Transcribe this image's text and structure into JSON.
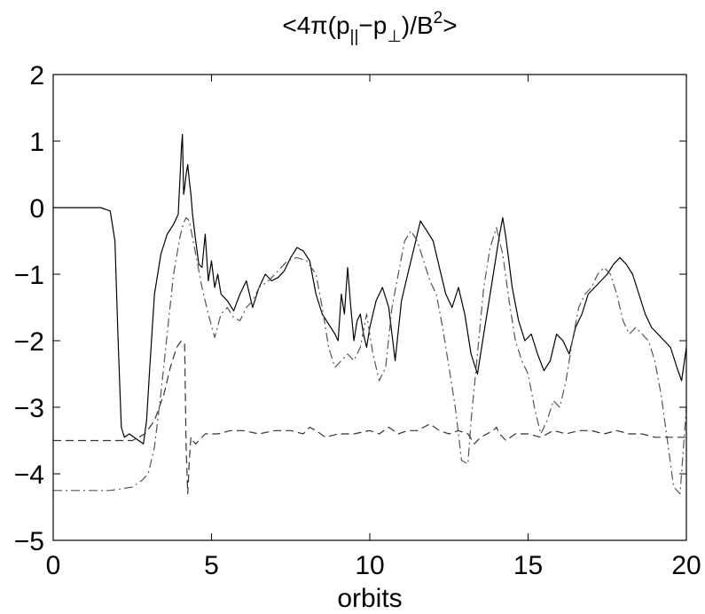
{
  "chart_data": {
    "type": "line",
    "title": "<4π(p||−p⊥)/B²>",
    "title_parts": {
      "prefix": "<4π(p",
      "sub1": "||",
      "mid": "−p",
      "sub2": "⊥",
      "after": ")/B",
      "sup": "2",
      "suffix": ">"
    },
    "xlabel": "orbits",
    "ylabel": "",
    "xlim": [
      0,
      20
    ],
    "ylim": [
      -5,
      2
    ],
    "xticks": [
      "0",
      "5",
      "10",
      "15",
      "20"
    ],
    "yticks": [
      "2",
      "1",
      "0",
      "−1",
      "−2",
      "−3",
      "−4",
      "−5"
    ],
    "grid": false,
    "legend": "none",
    "series": [
      {
        "style": "solid",
        "color": "#000000",
        "x": [
          0,
          1.5,
          1.8,
          1.95,
          2.05,
          2.15,
          2.25,
          2.4,
          2.55,
          2.7,
          2.85,
          2.95,
          3.05,
          3.2,
          3.4,
          3.6,
          3.8,
          3.95,
          4.05,
          4.08,
          4.12,
          4.15,
          4.2,
          4.25,
          4.3,
          4.35,
          4.4,
          4.5,
          4.6,
          4.7,
          4.8,
          4.9,
          5.0,
          5.1,
          5.2,
          5.3,
          5.5,
          5.7,
          5.9,
          6.1,
          6.3,
          6.5,
          6.7,
          6.9,
          7.1,
          7.3,
          7.5,
          7.7,
          7.9,
          8.1,
          8.3,
          8.5,
          8.7,
          8.9,
          9.0,
          9.1,
          9.2,
          9.3,
          9.4,
          9.5,
          9.6,
          9.7,
          9.8,
          9.9,
          10.0,
          10.2,
          10.4,
          10.6,
          10.8,
          11.0,
          11.2,
          11.4,
          11.6,
          11.8,
          12.0,
          12.2,
          12.4,
          12.6,
          12.8,
          13.0,
          13.2,
          13.4,
          13.6,
          13.8,
          14.0,
          14.1,
          14.2,
          14.3,
          14.5,
          14.7,
          14.9,
          15.1,
          15.3,
          15.5,
          15.7,
          15.9,
          16.1,
          16.3,
          16.5,
          16.7,
          16.9,
          17.1,
          17.3,
          17.5,
          17.7,
          17.9,
          18.1,
          18.3,
          18.5,
          18.7,
          18.9,
          19.1,
          19.3,
          19.5,
          19.7,
          19.85,
          20.0
        ],
        "y": [
          0,
          0,
          -0.05,
          -0.5,
          -2.0,
          -3.3,
          -3.45,
          -3.4,
          -3.45,
          -3.5,
          -3.55,
          -3.2,
          -2.4,
          -1.3,
          -0.7,
          -0.4,
          -0.25,
          -0.1,
          0.9,
          1.1,
          0.2,
          0.3,
          0.5,
          0.65,
          0.4,
          0.2,
          -0.1,
          -0.5,
          -0.85,
          -0.9,
          -0.4,
          -1.1,
          -0.8,
          -1.2,
          -1.0,
          -1.3,
          -1.4,
          -1.55,
          -1.3,
          -1.1,
          -1.5,
          -1.2,
          -1.0,
          -1.1,
          -1.05,
          -0.95,
          -0.75,
          -0.6,
          -0.65,
          -0.8,
          -1.3,
          -1.6,
          -1.75,
          -1.9,
          -2.0,
          -1.3,
          -1.6,
          -0.9,
          -1.5,
          -2.0,
          -1.7,
          -1.6,
          -1.9,
          -2.1,
          -1.8,
          -1.4,
          -1.2,
          -1.5,
          -2.3,
          -1.4,
          -1.0,
          -0.6,
          -0.2,
          -0.35,
          -0.5,
          -0.9,
          -1.3,
          -1.5,
          -1.2,
          -1.6,
          -2.2,
          -2.5,
          -1.9,
          -1.3,
          -0.7,
          -0.4,
          -0.15,
          -0.45,
          -1.2,
          -1.7,
          -2.0,
          -1.9,
          -2.2,
          -2.45,
          -2.3,
          -1.9,
          -2.0,
          -2.2,
          -1.8,
          -1.6,
          -1.3,
          -1.2,
          -1.1,
          -1.0,
          -0.85,
          -0.75,
          -0.85,
          -1.0,
          -1.3,
          -1.6,
          -1.8,
          -1.9,
          -2.0,
          -2.1,
          -2.4,
          -2.6,
          -2.1
        ]
      },
      {
        "style": "dash-dot",
        "color": "#555555",
        "x": [
          0,
          1.8,
          2.5,
          2.8,
          3.0,
          3.2,
          3.4,
          3.6,
          3.8,
          4.0,
          4.1,
          4.2,
          4.3,
          4.5,
          4.7,
          4.9,
          5.1,
          5.3,
          5.5,
          5.7,
          5.9,
          6.1,
          6.3,
          6.5,
          6.8,
          7.1,
          7.4,
          7.7,
          8.0,
          8.3,
          8.5,
          8.7,
          8.9,
          9.1,
          9.3,
          9.5,
          9.7,
          9.9,
          10.1,
          10.3,
          10.5,
          10.7,
          10.9,
          11.1,
          11.3,
          11.5,
          11.7,
          11.9,
          12.1,
          12.3,
          12.5,
          12.7,
          12.9,
          13.1,
          13.2,
          13.4,
          13.6,
          13.8,
          14.0,
          14.2,
          14.4,
          14.6,
          14.8,
          15.0,
          15.2,
          15.4,
          15.6,
          15.8,
          16.0,
          16.2,
          16.4,
          16.6,
          16.8,
          17.0,
          17.2,
          17.4,
          17.6,
          17.8,
          18.0,
          18.2,
          18.4,
          18.6,
          18.8,
          19.0,
          19.2,
          19.4,
          19.6,
          19.8,
          20.0
        ],
        "y": [
          -4.25,
          -4.25,
          -4.2,
          -4.1,
          -4.0,
          -3.6,
          -2.8,
          -1.9,
          -1.0,
          -0.45,
          -0.25,
          -0.15,
          -0.2,
          -0.7,
          -1.2,
          -1.6,
          -1.95,
          -1.6,
          -1.5,
          -1.65,
          -1.7,
          -1.5,
          -1.4,
          -1.2,
          -1.1,
          -0.95,
          -0.8,
          -0.75,
          -0.8,
          -1.0,
          -1.5,
          -2.1,
          -2.4,
          -2.3,
          -2.2,
          -2.3,
          -2.1,
          -1.6,
          -2.2,
          -2.6,
          -2.4,
          -1.5,
          -1.0,
          -0.5,
          -0.35,
          -0.5,
          -0.8,
          -1.1,
          -1.3,
          -1.8,
          -2.4,
          -3.0,
          -3.8,
          -3.85,
          -3.2,
          -2.2,
          -1.2,
          -0.6,
          -0.3,
          -0.7,
          -1.4,
          -2.0,
          -2.3,
          -2.5,
          -3.0,
          -3.4,
          -3.2,
          -2.9,
          -3.0,
          -2.6,
          -2.0,
          -1.5,
          -1.3,
          -1.2,
          -1.0,
          -0.9,
          -1.0,
          -1.3,
          -1.7,
          -1.9,
          -1.8,
          -1.9,
          -2.0,
          -2.3,
          -2.8,
          -3.5,
          -4.2,
          -4.3,
          -3.0
        ]
      },
      {
        "style": "dashed",
        "color": "#333333",
        "x": [
          0,
          2.5,
          2.9,
          3.2,
          3.5,
          3.7,
          3.9,
          4.05,
          4.15,
          4.2,
          4.25,
          4.3,
          4.35,
          4.4,
          4.5,
          4.8,
          5.2,
          5.6,
          6.0,
          6.5,
          7.0,
          7.5,
          7.9,
          8.1,
          8.3,
          8.6,
          9.0,
          9.5,
          10.0,
          10.3,
          10.6,
          10.9,
          11.2,
          11.5,
          11.7,
          11.9,
          12.2,
          12.5,
          12.8,
          13.1,
          13.3,
          13.5,
          13.7,
          13.9,
          14.0,
          14.1,
          14.3,
          14.6,
          15.0,
          15.4,
          15.8,
          16.2,
          16.6,
          17.0,
          17.4,
          17.8,
          18.2,
          18.6,
          19.0,
          19.4,
          19.8,
          20.0
        ],
        "y": [
          -3.5,
          -3.5,
          -3.4,
          -3.2,
          -2.8,
          -2.4,
          -2.1,
          -2.0,
          -2.05,
          -3.6,
          -4.3,
          -3.8,
          -3.45,
          -3.5,
          -3.55,
          -3.4,
          -3.4,
          -3.35,
          -3.35,
          -3.4,
          -3.35,
          -3.35,
          -3.4,
          -3.3,
          -3.35,
          -3.45,
          -3.4,
          -3.4,
          -3.35,
          -3.4,
          -3.3,
          -3.4,
          -3.35,
          -3.35,
          -3.3,
          -3.25,
          -3.35,
          -3.4,
          -3.35,
          -3.4,
          -3.55,
          -3.45,
          -3.4,
          -3.35,
          -3.3,
          -3.4,
          -3.5,
          -3.4,
          -3.4,
          -3.45,
          -3.35,
          -3.4,
          -3.35,
          -3.35,
          -3.4,
          -3.35,
          -3.4,
          -3.4,
          -3.45,
          -3.45,
          -3.45,
          -3.45
        ]
      }
    ]
  }
}
